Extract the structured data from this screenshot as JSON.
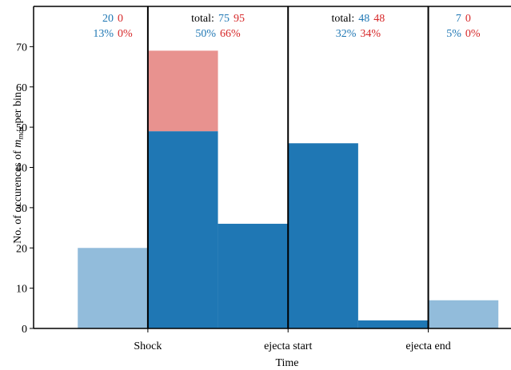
{
  "chart_data": {
    "type": "histogram",
    "bins": [
      0,
      1,
      2,
      3,
      4,
      5,
      6
    ],
    "series": [
      {
        "color": "#92bcdb",
        "values": [
          20,
          null,
          null,
          null,
          null,
          7
        ]
      },
      {
        "color": "#1f77b4",
        "values": [
          null,
          49,
          26,
          46,
          2,
          null
        ]
      },
      {
        "color": "#e8928f",
        "values": [
          null,
          20,
          null,
          null,
          null,
          null
        ]
      }
    ],
    "xlim": [
      -0.63,
      6.18
    ],
    "xticks": [
      {
        "value": 1,
        "label": "Shock"
      },
      {
        "value": 3,
        "label": "ejecta start"
      },
      {
        "value": 5,
        "label": "ejecta end"
      }
    ],
    "ylim": [
      0,
      80
    ],
    "yticks": [
      0,
      10,
      20,
      30,
      40,
      50,
      60,
      70
    ],
    "xlabel": "Time",
    "ylabel": {
      "text": "No. of occurences of",
      "symbol": "m",
      "subscript": "max",
      "suffix": "per bin"
    },
    "annotation_colors": [
      "#1f77b4",
      "#d62728"
    ],
    "annotations": [
      {
        "counts": [
          20,
          0
        ],
        "shares": {
          "values": [
            13,
            0
          ],
          "value_labels": [
            "13%",
            "0%"
          ]
        }
      },
      {
        "prefix": "total:",
        "counts": [
          75,
          95
        ],
        "shares": {
          "values": [
            50,
            66
          ],
          "value_labels": [
            "50%",
            "66%"
          ]
        }
      },
      {
        "prefix": "total:",
        "counts": [
          48,
          48
        ],
        "shares": {
          "values": [
            32,
            34
          ],
          "value_labels": [
            "32%",
            "34%"
          ]
        }
      },
      {
        "counts": [
          7,
          0
        ],
        "shares": {
          "values": [
            5,
            0
          ],
          "value_labels": [
            "5%",
            "0%"
          ]
        }
      }
    ]
  }
}
